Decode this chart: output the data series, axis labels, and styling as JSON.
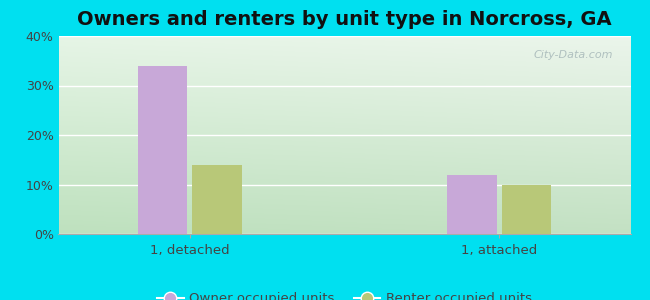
{
  "title": "Owners and renters by unit type in Norcross, GA",
  "groups": [
    "1, detached",
    "1, attached"
  ],
  "series": [
    "Owner occupied units",
    "Renter occupied units"
  ],
  "values": [
    [
      34,
      14
    ],
    [
      12,
      10
    ]
  ],
  "bar_colors": [
    "#c8a8d8",
    "#b8c878"
  ],
  "ylim": [
    0,
    0.4
  ],
  "yticks": [
    0.0,
    0.1,
    0.2,
    0.3,
    0.4
  ],
  "ytick_labels": [
    "0%",
    "10%",
    "20%",
    "30%",
    "40%"
  ],
  "outer_bg": "#00e0f0",
  "watermark": "City-Data.com",
  "title_fontsize": 14,
  "legend_fontsize": 9.5,
  "bar_width": 0.32,
  "group_positions": [
    0.75,
    2.75
  ],
  "xlim": [
    -0.1,
    3.6
  ]
}
